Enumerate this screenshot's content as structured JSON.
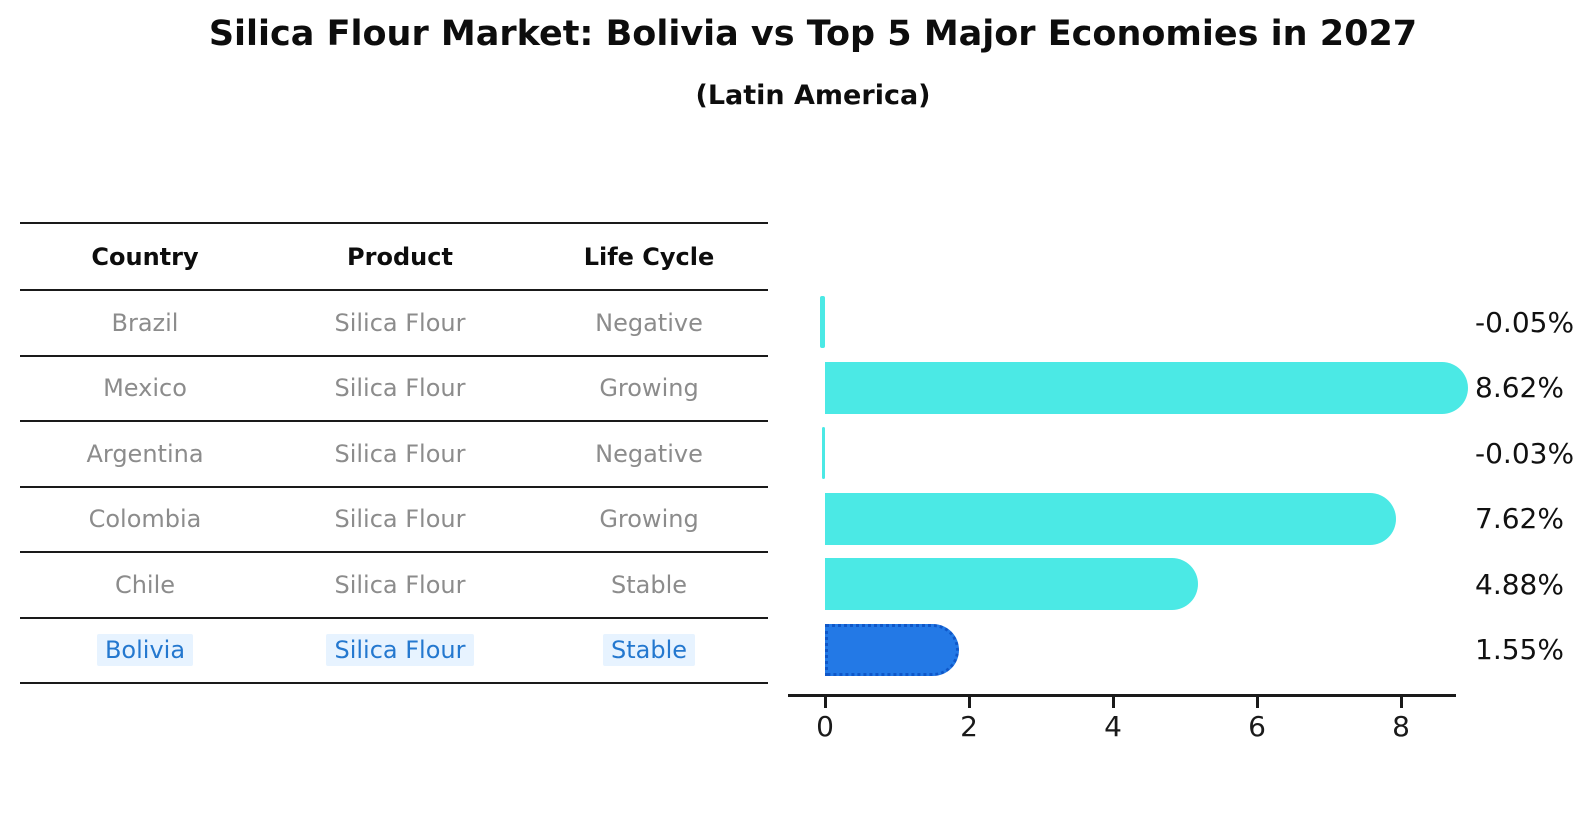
{
  "title": "Silica Flour Market: Bolivia vs Top 5 Major Economies in 2027",
  "subtitle": "(Latin America)",
  "table": {
    "headers": [
      "Country",
      "Product",
      "Life Cycle"
    ],
    "rows": [
      {
        "country": "Brazil",
        "product": "Silica Flour",
        "life_cycle": "Negative",
        "highlight": false
      },
      {
        "country": "Mexico",
        "product": "Silica Flour",
        "life_cycle": "Growing",
        "highlight": false
      },
      {
        "country": "Argentina",
        "product": "Silica Flour",
        "life_cycle": "Negative",
        "highlight": false
      },
      {
        "country": "Colombia",
        "product": "Silica Flour",
        "life_cycle": "Growing",
        "highlight": false
      },
      {
        "country": "Chile",
        "product": "Silica Flour",
        "life_cycle": "Stable",
        "highlight": false
      },
      {
        "country": "Bolivia",
        "product": "Silica Flour",
        "life_cycle": "Stable",
        "highlight": true
      }
    ]
  },
  "chart_data": {
    "type": "bar",
    "orientation": "horizontal",
    "categories": [
      "Brazil",
      "Mexico",
      "Argentina",
      "Colombia",
      "Chile",
      "Bolivia"
    ],
    "values": [
      -0.05,
      8.62,
      -0.03,
      7.62,
      4.88,
      1.55
    ],
    "value_labels": [
      "-0.05%",
      "8.62%",
      "-0.03%",
      "7.62%",
      "4.88%",
      "1.55%"
    ],
    "x_ticks": [
      "0",
      "2",
      "4",
      "6",
      "8"
    ],
    "xlim": [
      -0.5,
      8.8
    ],
    "grid": false,
    "legend": null,
    "bar_color": "#4BE9E5",
    "highlight_bar_color": "#2379E6",
    "highlight_index": 5,
    "highlight_text_color": "#2478cf",
    "axis_color": "#1a1a1a"
  }
}
